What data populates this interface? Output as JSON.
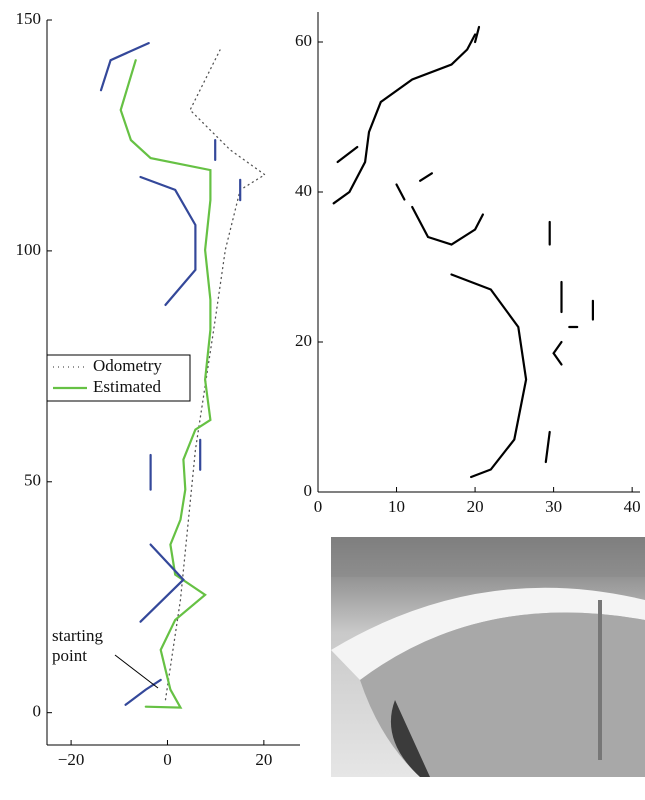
{
  "chart_data": [
    {
      "type": "line",
      "xlim": [
        -25,
        27.5
      ],
      "ylim": [
        -7,
        150
      ],
      "xticks": [
        {
          "value": -20,
          "label": "−20"
        },
        0,
        20
      ],
      "yticks": [
        0,
        50,
        100,
        150
      ],
      "legend": "left",
      "annotation": [
        "starting",
        "point"
      ],
      "series": [
        {
          "name": "Odometry",
          "color": "#555555",
          "style": "dotted",
          "x": [
            -0.4,
            2.7,
            5.8,
            9.9,
            12.0,
            15.1,
            20.2,
            13.0,
            4.7,
            10.9
          ],
          "values": [
            2.8,
            24.5,
            56.9,
            85.1,
            100.2,
            113.2,
            116.5,
            121.9,
            130.5,
            143.5
          ]
        },
        {
          "name": "Estimated",
          "color": "#66c144",
          "style": "solid",
          "x": [
            -4.5,
            2.7,
            0.6,
            -0.4,
            -1.4,
            1.6,
            7.8,
            1.6,
            0.6,
            2.7,
            3.7,
            3.3,
            5.8,
            8.9,
            7.8,
            8.9,
            8.9,
            7.8,
            8.9,
            8.9,
            -3.5,
            -7.6,
            -9.7,
            -6.6
          ],
          "values": [
            1.3,
            1.1,
            5.0,
            9.3,
            13.6,
            20.1,
            25.5,
            29.9,
            36.4,
            41.8,
            48.3,
            54.8,
            61.3,
            63.4,
            72.1,
            82.9,
            89.4,
            100.2,
            111.0,
            117.5,
            120.1,
            124.0,
            130.5,
            141.3
          ]
        },
        {
          "color": "#34489a",
          "style": "solid",
          "x": [
            -5.6,
            1.6,
            5.8,
            5.8,
            -0.4
          ],
          "values": [
            116.0,
            113.2,
            105.6,
            95.9,
            88.3
          ]
        },
        {
          "color": "#34489a",
          "style": "solid",
          "x": [
            -3.9,
            -11.8,
            -13.8
          ],
          "values": [
            145.0,
            141.3,
            134.8
          ]
        },
        {
          "color": "#34489a",
          "style": "solid",
          "x": [
            -3.5,
            3.3,
            -5.6
          ],
          "values": [
            36.4,
            28.8,
            19.7
          ]
        },
        {
          "color": "#34489a",
          "style": "solid",
          "x": [
            -8.7,
            -4.5,
            -1.4
          ],
          "values": [
            1.7,
            5.0,
            7.1
          ]
        },
        {
          "color": "#34489a",
          "style": "solid",
          "x": [
            9.9,
            9.9
          ],
          "values": [
            124.0,
            119.7
          ]
        },
        {
          "color": "#34489a",
          "style": "solid",
          "x": [
            15.1,
            15.1
          ],
          "values": [
            115.4,
            111.0
          ]
        },
        {
          "color": "#34489a",
          "style": "solid",
          "x": [
            6.8,
            6.8
          ],
          "values": [
            59.1,
            52.6
          ]
        },
        {
          "color": "#34489a",
          "style": "solid",
          "x": [
            -3.5,
            -3.5
          ],
          "values": [
            55.8,
            48.3
          ]
        }
      ]
    },
    {
      "type": "line",
      "xlim": [
        0,
        41
      ],
      "ylim": [
        0,
        64
      ],
      "xticks": [
        0,
        10,
        20,
        30,
        40
      ],
      "yticks": [
        0,
        20,
        40,
        60
      ],
      "series": [
        {
          "color": "#000000",
          "style": "solid",
          "x": [
            2,
            4,
            6,
            6.5,
            8,
            12,
            17,
            19,
            20
          ],
          "values": [
            38.5,
            40,
            44,
            48,
            52,
            55,
            57,
            59,
            61
          ]
        },
        {
          "color": "#000000",
          "style": "solid",
          "x": [
            17,
            22,
            25.5,
            26.5,
            25,
            22,
            19.5
          ],
          "values": [
            29,
            27,
            22,
            15,
            7,
            3,
            2
          ]
        },
        {
          "color": "#000000",
          "style": "solid",
          "x": [
            12,
            14,
            17,
            20,
            21
          ],
          "values": [
            38,
            34,
            33,
            35,
            37
          ]
        },
        {
          "color": "#000000",
          "style": "solid",
          "x": [
            29.5,
            29.5
          ],
          "values": [
            36,
            33
          ]
        },
        {
          "color": "#000000",
          "style": "solid",
          "x": [
            29.5,
            29
          ],
          "values": [
            8,
            4
          ]
        },
        {
          "color": "#000000",
          "style": "solid",
          "x": [
            31,
            31
          ],
          "values": [
            28,
            24
          ]
        },
        {
          "color": "#000000",
          "style": "solid",
          "x": [
            32,
            33
          ],
          "values": [
            22,
            22
          ]
        },
        {
          "color": "#000000",
          "style": "solid",
          "x": [
            35,
            35
          ],
          "values": [
            25.5,
            23
          ]
        },
        {
          "color": "#000000",
          "style": "solid",
          "x": [
            31,
            30,
            31
          ],
          "values": [
            20,
            18.5,
            17
          ]
        },
        {
          "color": "#000000",
          "style": "solid",
          "x": [
            2.5,
            5
          ],
          "values": [
            44,
            46
          ]
        },
        {
          "color": "#000000",
          "style": "solid",
          "x": [
            10,
            11
          ],
          "values": [
            41,
            39
          ]
        },
        {
          "color": "#000000",
          "style": "solid",
          "x": [
            13,
            14.5
          ],
          "values": [
            41.5,
            42.5
          ]
        },
        {
          "color": "#000000",
          "style": "solid",
          "x": [
            20,
            20.5
          ],
          "values": [
            60,
            62
          ]
        }
      ]
    }
  ]
}
